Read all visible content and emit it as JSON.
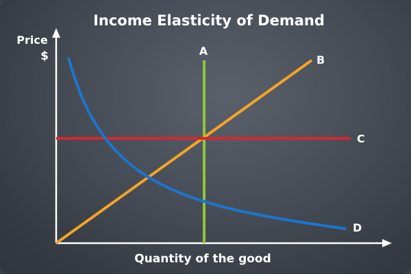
{
  "title": "Income Elasticity of Demand",
  "axes": {
    "y_label": "Price",
    "y_unit": "$",
    "x_label": "Quantity of the good"
  },
  "curves": [
    {
      "label": "A",
      "color": "#8dc63f",
      "shape": "vertical line"
    },
    {
      "label": "B",
      "color": "#f7a325",
      "shape": "upward sloping line"
    },
    {
      "label": "C",
      "color": "#d7262e",
      "shape": "horizontal line"
    },
    {
      "label": "D",
      "color": "#1b75d1",
      "shape": "downward sloping convex curve"
    }
  ],
  "colors": {
    "axis": "#ffffff",
    "text": "#ffffff",
    "background": "#474d56"
  }
}
